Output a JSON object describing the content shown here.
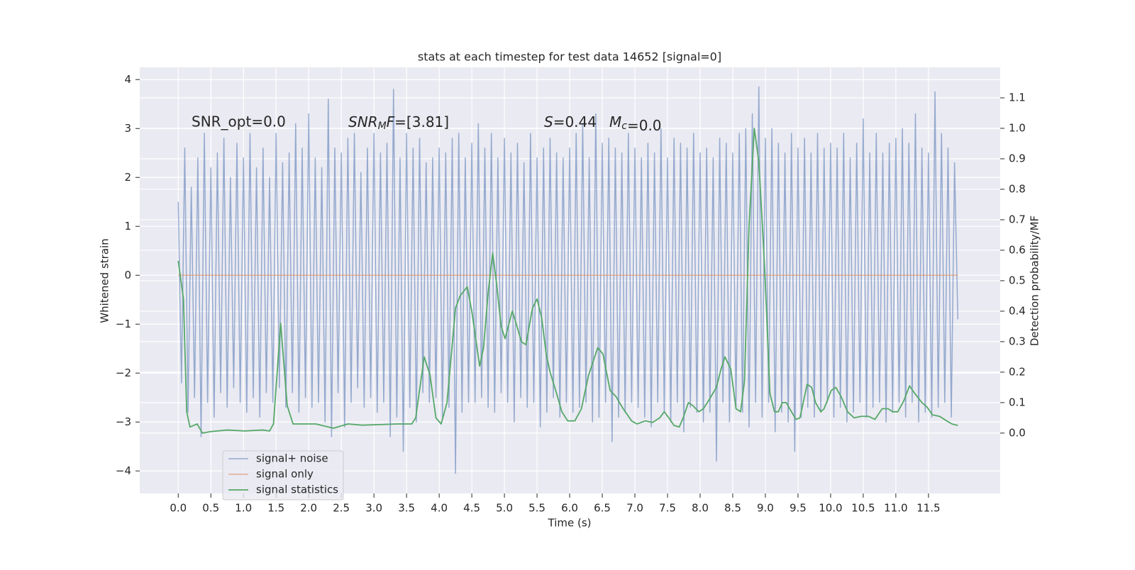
{
  "chart_data": {
    "type": "line",
    "title": "stats at each timestep for test data 14652 [signal=0]",
    "xlabel": "Time (s)",
    "ylabel": "Whitened strain",
    "y2label": "Detection probability/MF",
    "annotations": [
      "SNR_opt=0.0",
      "SNR_MF=[3.81]",
      "S=0.44",
      "M_c=0.0"
    ],
    "xlim": [
      -0.59,
      12.6
    ],
    "ylim": [
      -4.46,
      4.25
    ],
    "y2lim": [
      -0.198,
      1.2
    ],
    "xticks": [
      {
        "value": 0,
        "label": "0.0"
      },
      0.5,
      {
        "value": 1,
        "label": "1.0"
      },
      1.5,
      {
        "value": 2,
        "label": "2.0"
      },
      2.5,
      {
        "value": 3,
        "label": "3.0"
      },
      3.5,
      {
        "value": 4,
        "label": "4.0"
      },
      4.5,
      {
        "value": 5,
        "label": "5.0"
      },
      5.5,
      {
        "value": 6,
        "label": "6.0"
      },
      6.5,
      {
        "value": 7,
        "label": "7.0"
      },
      7.5,
      {
        "value": 8,
        "label": "8.0"
      },
      8.5,
      {
        "value": 9,
        "label": "9.0"
      },
      9.5,
      {
        "value": 10,
        "label": "10.0"
      },
      10.5,
      {
        "value": 11,
        "label": "11.0"
      },
      11.5
    ],
    "yticks": [
      {
        "value": -4,
        "label": "−4"
      },
      {
        "value": -3,
        "label": "−3"
      },
      {
        "value": -2,
        "label": "−2"
      },
      {
        "value": -1,
        "label": "−1"
      },
      0,
      1,
      2,
      3,
      4
    ],
    "y2ticks": [
      {
        "value": 0,
        "label": "0.0"
      },
      0.1,
      0.2,
      0.3,
      0.4,
      0.5,
      0.6,
      0.7,
      0.8,
      0.9,
      {
        "value": 1,
        "label": "1.0"
      },
      1.1
    ],
    "grid": true,
    "legend": "lower left",
    "series": [
      {
        "name": "signal+ noise",
        "color": "#4c72b0",
        "axis": "y",
        "x": [
          0,
          0.05,
          0.1,
          0.15,
          0.2,
          0.25,
          0.3,
          0.35,
          0.4,
          0.45,
          0.5,
          0.55,
          0.6,
          0.65,
          0.7,
          0.75,
          0.8,
          0.85,
          0.9,
          0.95,
          1,
          1.05,
          1.1,
          1.15,
          1.2,
          1.25,
          1.3,
          1.35,
          1.4,
          1.45,
          1.5,
          1.55,
          1.6,
          1.65,
          1.7,
          1.75,
          1.8,
          1.85,
          1.9,
          1.95,
          2,
          2.05,
          2.1,
          2.15,
          2.2,
          2.25,
          2.3,
          2.35,
          2.4,
          2.45,
          2.5,
          2.55,
          2.6,
          2.65,
          2.7,
          2.75,
          2.8,
          2.85,
          2.9,
          2.95,
          3,
          3.05,
          3.1,
          3.15,
          3.2,
          3.25,
          3.3,
          3.35,
          3.4,
          3.45,
          3.5,
          3.55,
          3.6,
          3.65,
          3.7,
          3.75,
          3.8,
          3.85,
          3.9,
          3.95,
          4,
          4.05,
          4.1,
          4.15,
          4.2,
          4.25,
          4.3,
          4.35,
          4.4,
          4.45,
          4.5,
          4.55,
          4.6,
          4.65,
          4.7,
          4.75,
          4.8,
          4.85,
          4.9,
          4.95,
          5,
          5.05,
          5.1,
          5.15,
          5.2,
          5.25,
          5.3,
          5.35,
          5.4,
          5.45,
          5.5,
          5.55,
          5.6,
          5.65,
          5.7,
          5.75,
          5.8,
          5.85,
          5.9,
          5.95,
          6,
          6.05,
          6.1,
          6.15,
          6.2,
          6.25,
          6.3,
          6.35,
          6.4,
          6.45,
          6.5,
          6.55,
          6.6,
          6.65,
          6.7,
          6.75,
          6.8,
          6.85,
          6.9,
          6.95,
          7,
          7.05,
          7.1,
          7.15,
          7.2,
          7.25,
          7.3,
          7.35,
          7.4,
          7.45,
          7.5,
          7.55,
          7.6,
          7.65,
          7.7,
          7.75,
          7.8,
          7.85,
          7.9,
          7.95,
          8,
          8.05,
          8.1,
          8.15,
          8.2,
          8.25,
          8.3,
          8.35,
          8.4,
          8.45,
          8.5,
          8.55,
          8.6,
          8.65,
          8.7,
          8.75,
          8.8,
          8.85,
          8.9,
          8.95,
          9,
          9.05,
          9.1,
          9.15,
          9.2,
          9.25,
          9.3,
          9.35,
          9.4,
          9.45,
          9.5,
          9.55,
          9.6,
          9.65,
          9.7,
          9.75,
          9.8,
          9.85,
          9.9,
          9.95,
          10,
          10.05,
          10.1,
          10.15,
          10.2,
          10.25,
          10.3,
          10.35,
          10.4,
          10.45,
          10.5,
          10.55,
          10.6,
          10.65,
          10.7,
          10.75,
          10.8,
          10.85,
          10.9,
          10.95,
          11,
          11.05,
          11.1,
          11.15,
          11.2,
          11.25,
          11.3,
          11.35,
          11.4,
          11.45,
          11.5,
          11.55,
          11.6,
          11.65,
          11.7,
          11.75,
          11.8,
          11.85,
          11.9,
          11.95
        ],
        "values": [
          1.5,
          -2.2,
          2.6,
          -2.8,
          1.8,
          -2.5,
          2.4,
          -3.3,
          2.9,
          -2.6,
          2.2,
          -2.9,
          2.5,
          -2.4,
          2.8,
          -2.7,
          2.0,
          -2.3,
          2.7,
          -2.6,
          2.4,
          -2.8,
          2.9,
          -2.5,
          2.2,
          -2.9,
          2.6,
          -2.4,
          2.0,
          -2.6,
          2.9,
          -2.3,
          2.3,
          -2.7,
          2.5,
          -2.4,
          3.1,
          -2.8,
          2.6,
          -2.5,
          3.3,
          -2.7,
          2.4,
          -2.6,
          2.2,
          -3.0,
          3.6,
          -3.3,
          2.6,
          -2.4,
          2.5,
          -3.1,
          2.8,
          -2.6,
          2.9,
          -2.3,
          2.1,
          -2.7,
          2.6,
          -2.5,
          2.9,
          -2.8,
          2.5,
          -2.6,
          2.7,
          -3.3,
          3.8,
          -2.9,
          2.4,
          -3.6,
          2.9,
          -2.7,
          2.6,
          -3.0,
          2.8,
          -2.4,
          2.3,
          -2.6,
          2.4,
          -2.5,
          2.6,
          -2.9,
          2.5,
          -2.7,
          2.8,
          -4.05,
          2.9,
          -2.8,
          2.4,
          -2.6,
          2.7,
          -2.6,
          3.1,
          -2.5,
          2.6,
          -2.7,
          2.9,
          -2.8,
          2.4,
          -2.4,
          2.8,
          -2.6,
          2.5,
          -3.0,
          2.7,
          -2.5,
          2.3,
          -2.7,
          2.9,
          -2.6,
          2.4,
          -3.1,
          2.6,
          -2.8,
          2.8,
          -2.5,
          2.5,
          -2.9,
          2.4,
          -2.6,
          2.6,
          -2.8,
          2.9,
          -2.7,
          3.1,
          -2.6,
          2.4,
          -3.0,
          3.3,
          -2.9,
          2.7,
          -2.6,
          2.8,
          -3.4,
          2.6,
          -2.9,
          2.5,
          -2.8,
          2.9,
          -2.6,
          2.6,
          -2.7,
          2.4,
          -2.9,
          2.7,
          -3.1,
          2.5,
          -2.6,
          3.0,
          -2.8,
          2.4,
          -3.0,
          2.8,
          -2.6,
          2.7,
          -3.2,
          2.6,
          -2.7,
          2.9,
          -2.8,
          2.5,
          -3.0,
          2.6,
          -2.8,
          2.4,
          -3.8,
          2.8,
          -2.6,
          2.7,
          -3.0,
          2.5,
          -2.7,
          2.9,
          -2.8,
          3.0,
          -3.1,
          3.3,
          -2.6,
          3.85,
          -2.9,
          2.8,
          -2.6,
          3.0,
          -3.2,
          2.7,
          -2.8,
          2.5,
          -3.0,
          2.9,
          -3.6,
          2.6,
          -2.9,
          2.8,
          -2.7,
          2.5,
          -2.9,
          2.9,
          -2.8,
          2.6,
          -2.6,
          2.7,
          -2.9,
          2.6,
          -2.7,
          2.9,
          -3.0,
          2.4,
          -2.8,
          2.7,
          -2.6,
          3.2,
          -2.9,
          2.5,
          -2.7,
          2.9,
          -2.6,
          2.5,
          -3.0,
          2.7,
          -2.8,
          2.8,
          -2.6,
          3.0,
          -2.9,
          2.7,
          -2.6,
          3.3,
          -3.0,
          2.6,
          -2.8,
          2.5,
          -2.9,
          3.75,
          -2.7,
          2.9,
          -2.6,
          2.6,
          -2.9,
          2.3,
          -0.9
        ]
      },
      {
        "name": "signal only",
        "color": "#dd8452",
        "axis": "y",
        "x": [
          0,
          11.95
        ],
        "values": [
          0,
          0
        ]
      },
      {
        "name": "signal statistics",
        "color": "#55a868",
        "axis": "y2",
        "x": [
          0,
          0.08,
          0.13,
          0.18,
          0.29,
          0.37,
          0.5,
          0.75,
          1.02,
          1.29,
          1.4,
          1.46,
          1.57,
          1.67,
          1.76,
          1.95,
          2.11,
          2.38,
          2.6,
          2.82,
          3.09,
          3.36,
          3.58,
          3.64,
          3.77,
          3.86,
          3.95,
          4.03,
          4.12,
          4.25,
          4.32,
          4.43,
          4.5,
          4.62,
          4.68,
          4.75,
          4.82,
          4.88,
          4.95,
          5.01,
          5.12,
          5.18,
          5.26,
          5.33,
          5.43,
          5.5,
          5.57,
          5.64,
          5.7,
          5.8,
          5.88,
          5.97,
          6.08,
          6.18,
          6.29,
          6.43,
          6.51,
          6.62,
          6.71,
          6.82,
          6.95,
          7.03,
          7.16,
          7.27,
          7.38,
          7.45,
          7.52,
          7.6,
          7.68,
          7.74,
          7.82,
          7.89,
          7.98,
          8.05,
          8.14,
          8.25,
          8.32,
          8.38,
          8.47,
          8.55,
          8.62,
          8.68,
          8.75,
          8.83,
          8.9,
          8.99,
          9.07,
          9.14,
          9.2,
          9.26,
          9.32,
          9.4,
          9.47,
          9.53,
          9.64,
          9.71,
          9.77,
          9.85,
          9.9,
          10.01,
          10.08,
          10.16,
          10.26,
          10.36,
          10.47,
          10.58,
          10.68,
          10.79,
          10.88,
          10.95,
          11.03,
          11.12,
          11.21,
          11.29,
          11.4,
          11.48,
          11.56,
          11.67,
          11.78,
          11.86,
          11.95
        ],
        "values": [
          0.565,
          0.44,
          0.07,
          0.02,
          0.03,
          0.0,
          0.005,
          0.01,
          0.007,
          0.01,
          0.007,
          0.03,
          0.36,
          0.09,
          0.03,
          0.03,
          0.03,
          0.016,
          0.03,
          0.026,
          0.028,
          0.03,
          0.03,
          0.05,
          0.25,
          0.19,
          0.05,
          0.03,
          0.1,
          0.41,
          0.45,
          0.48,
          0.4,
          0.22,
          0.28,
          0.46,
          0.59,
          0.49,
          0.35,
          0.31,
          0.4,
          0.36,
          0.3,
          0.29,
          0.41,
          0.44,
          0.38,
          0.26,
          0.2,
          0.13,
          0.07,
          0.04,
          0.04,
          0.08,
          0.19,
          0.28,
          0.26,
          0.14,
          0.12,
          0.08,
          0.04,
          0.03,
          0.04,
          0.035,
          0.05,
          0.07,
          0.05,
          0.025,
          0.02,
          0.05,
          0.1,
          0.09,
          0.07,
          0.08,
          0.11,
          0.15,
          0.21,
          0.25,
          0.21,
          0.08,
          0.07,
          0.17,
          0.68,
          1.0,
          0.89,
          0.54,
          0.13,
          0.07,
          0.07,
          0.1,
          0.1,
          0.07,
          0.045,
          0.05,
          0.16,
          0.15,
          0.1,
          0.07,
          0.08,
          0.14,
          0.15,
          0.12,
          0.07,
          0.05,
          0.055,
          0.055,
          0.045,
          0.08,
          0.08,
          0.07,
          0.07,
          0.105,
          0.155,
          0.13,
          0.1,
          0.085,
          0.06,
          0.055,
          0.04,
          0.03,
          0.025
        ]
      }
    ]
  }
}
